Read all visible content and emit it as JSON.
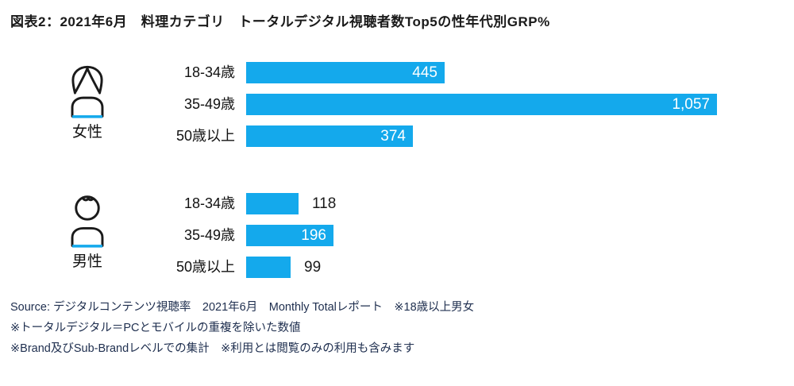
{
  "title": "図表2：2021年6月　料理カテゴリ　トータルデジタル視聴者数Top5の性年代別GRP%",
  "colors": {
    "bar": "#14a9ec",
    "icon_outline": "#1a1a1a",
    "icon_accent": "#14a9ec",
    "value_inside_text": "#ffffff",
    "value_outside_text": "#1a1a1a",
    "footnote_text": "#203050"
  },
  "chart_data": {
    "type": "bar",
    "orientation": "horizontal",
    "title": "図表2：2021年6月　料理カテゴリ　トータルデジタル視聴者数Top5の性年代別GRP%",
    "value_unit": "GRP%",
    "axes_hidden": true,
    "xlim": [
      0,
      1057
    ],
    "categories": [
      "18-34歳",
      "35-49歳",
      "50歳以上"
    ],
    "groups": [
      {
        "gender": "女性",
        "icon": "woman-icon",
        "rows": [
          {
            "age": "18-34歳",
            "value": 445,
            "label": "445",
            "label_position": "inside"
          },
          {
            "age": "35-49歳",
            "value": 1057,
            "label": "1,057",
            "label_position": "inside"
          },
          {
            "age": "50歳以上",
            "value": 374,
            "label": "374",
            "label_position": "inside"
          }
        ]
      },
      {
        "gender": "男性",
        "icon": "man-icon",
        "rows": [
          {
            "age": "18-34歳",
            "value": 118,
            "label": "118",
            "label_position": "outside"
          },
          {
            "age": "35-49歳",
            "value": 196,
            "label": "196",
            "label_position": "inside"
          },
          {
            "age": "50歳以上",
            "value": 99,
            "label": "99",
            "label_position": "outside"
          }
        ]
      }
    ]
  },
  "footnotes": [
    "Source: デジタルコンテンツ視聴率　2021年6月　Monthly Totalレポート　※18歳以上男女",
    "※トータルデジタル＝PCとモバイルの重複を除いた数値",
    "※Brand及びSub-Brandレベルでの集計　※利用とは閲覧のみの利用も含みます"
  ]
}
